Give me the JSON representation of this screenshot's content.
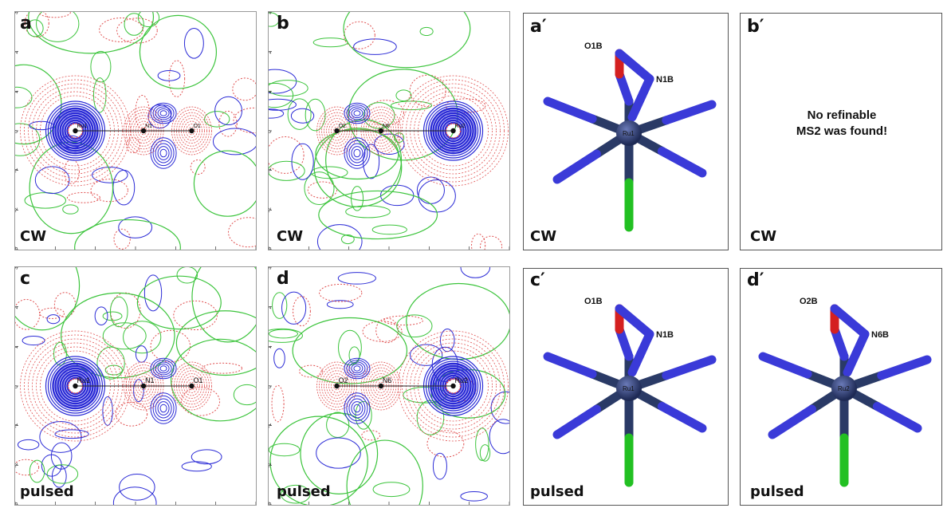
{
  "figure": {
    "maps": [
      {
        "id": "a",
        "label": "a",
        "condition": "CW",
        "atoms": [
          {
            "name": "Ru1",
            "x": -1.5
          },
          {
            "name": "N1",
            "x": 0.2
          },
          {
            "name": "O1",
            "x": 1.4
          }
        ],
        "metal_side": "left"
      },
      {
        "id": "b",
        "label": "b",
        "condition": "CW",
        "atoms": [
          {
            "name": "O2",
            "x": -1.3
          },
          {
            "name": "N6",
            "x": -0.2
          },
          {
            "name": "Ru2",
            "x": 1.6
          }
        ],
        "metal_side": "right"
      },
      {
        "id": "c",
        "label": "c",
        "condition": "pulsed",
        "atoms": [
          {
            "name": "Ru1",
            "x": -1.5
          },
          {
            "name": "N1",
            "x": 0.2
          },
          {
            "name": "O1",
            "x": 1.4
          }
        ],
        "metal_side": "left"
      },
      {
        "id": "d",
        "label": "d",
        "condition": "pulsed",
        "atoms": [
          {
            "name": "O2",
            "x": -1.3
          },
          {
            "name": "N6",
            "x": -0.2
          },
          {
            "name": "Ru2",
            "x": 1.6
          }
        ],
        "metal_side": "right"
      }
    ],
    "axis_ticks": [
      "-3",
      "-2",
      "-1",
      "0",
      "1",
      "2",
      "3"
    ],
    "axis_range": [
      -3,
      3
    ],
    "molecules": [
      {
        "id": "a-prime",
        "label": "a′",
        "condition": "CW",
        "metal": "Ru1",
        "o_label": "O1B",
        "n_label": "N1B"
      },
      {
        "id": "b-prime",
        "label": "b′",
        "condition": "CW",
        "message_line1": "No refinable",
        "message_line2": "MS2 was found!"
      },
      {
        "id": "c-prime",
        "label": "c′",
        "condition": "pulsed",
        "metal": "Ru1",
        "o_label": "O1B",
        "n_label": "N1B"
      },
      {
        "id": "d-prime",
        "label": "d′",
        "condition": "pulsed",
        "metal": "Ru2",
        "o_label": "O2B",
        "n_label": "N6B"
      }
    ],
    "colors": {
      "positive_contour": "#2b2bd6",
      "negative_contour": "#e05050",
      "zero_contour": "#3cc43c",
      "bond_blue": "#3a3ad8",
      "bond_dark": "#2a3a66",
      "oxygen_red": "#d42020",
      "chlorine_green": "#22c022"
    }
  }
}
